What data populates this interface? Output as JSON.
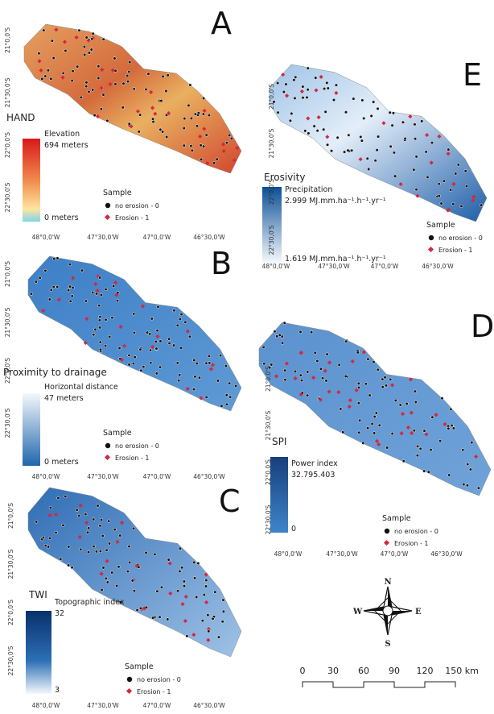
{
  "panels": [
    {
      "letter": "A",
      "layer_title": "HAND",
      "legend_title": "Elevation",
      "max_label": "694 meters",
      "min_label": "0 meters",
      "sample_title": "Sample",
      "sample_items": [
        "no erosion - 0",
        "Erosion - 1"
      ],
      "lat_labels": [
        "21°0,0'S",
        "21°30,0'S",
        "22°0,0'S",
        "22°30,0'S"
      ],
      "lon_labels": [
        "48°0,0'W",
        "47°30,0'W",
        "47°0,0'W",
        "46°30,0'W"
      ]
    },
    {
      "letter": "B",
      "layer_title": "Proximity to drainage",
      "legend_title": "Horizontal distance",
      "max_label": "47 meters",
      "min_label": "0 meters",
      "sample_title": "Sample",
      "sample_items": [
        "no erosion - 0",
        "Erosion - 1"
      ],
      "lat_labels": [
        "21°0,0'S",
        "21°30,0'S",
        "22°0,0'S",
        "22°30,0'S"
      ],
      "lon_labels": [
        "48°0,0'W",
        "47°30,0'W",
        "47°0,0'W",
        "46°30,0'W"
      ]
    },
    {
      "letter": "C",
      "layer_title": "TWI",
      "legend_title": "Topographic index",
      "max_label": "32",
      "min_label": "3",
      "sample_title": "Sample",
      "sample_items": [
        "no erosion - 0",
        "Erosion - 1"
      ],
      "lat_labels": [
        "21°0,0'S",
        "21°30,0'S",
        "22°0,0'S",
        "22°30,0'S"
      ],
      "lon_labels": [
        "48°0,0'W",
        "47°30,0'W",
        "47°0,0'W",
        "46°30,0'W"
      ]
    },
    {
      "letter": "E",
      "layer_title": "Erosivity",
      "legend_title": "Precipitation",
      "max_label": "2.999 MJ.mm.ha⁻¹.h⁻¹.yr⁻¹",
      "min_label": "1.619 MJ.mm.ha⁻¹.h⁻¹.yr⁻¹",
      "sample_title": "Sample",
      "sample_items": [
        "no erosion - 0",
        "Erosion - 1"
      ],
      "lat_labels": [
        "21°0,0'S",
        "21°30,0'S",
        "22°0,0'S",
        "22°30,0'S"
      ],
      "lon_labels": [
        "48°0,0'W",
        "47°30,0'W",
        "47°0,0'W",
        "46°30,0'W"
      ]
    },
    {
      "letter": "D",
      "layer_title": "SPI",
      "legend_title": "Power index",
      "max_label": "32.795.403",
      "min_label": "0",
      "sample_title": "Sample",
      "sample_items": [
        "no erosion - 0",
        "Erosion - 1"
      ],
      "lat_labels": [
        "21°0,0'S",
        "21°30,0'S",
        "22°0,0'S",
        "22°30,0'S"
      ],
      "lon_labels": [
        "48°0,0'W",
        "47°30,0'W",
        "47°0,0'W",
        "46°30,0'W"
      ]
    }
  ],
  "compass": {
    "n": "N",
    "s": "S",
    "e": "E",
    "w": "W"
  },
  "scale_bar": {
    "labels": [
      "0",
      "30",
      "60",
      "90",
      "120",
      "150 km"
    ]
  }
}
